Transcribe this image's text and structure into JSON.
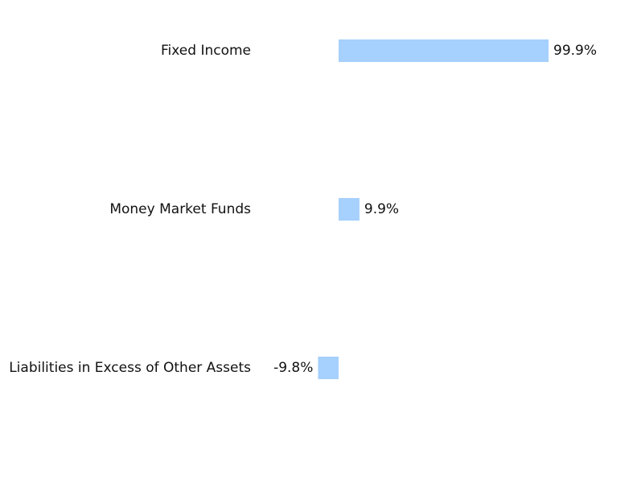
{
  "chart_data": {
    "type": "bar",
    "orientation": "horizontal",
    "categories": [
      "Fixed Income",
      "Money Market Funds",
      "Liabilities in Excess of Other Assets"
    ],
    "values": [
      99.9,
      9.9,
      -9.8
    ],
    "value_labels": [
      "99.9%",
      "9.9%",
      "-9.8%"
    ],
    "bar_color": "#a6d0fd",
    "title": "",
    "xlabel": "",
    "ylabel": "",
    "grid": false,
    "legend": "none"
  }
}
